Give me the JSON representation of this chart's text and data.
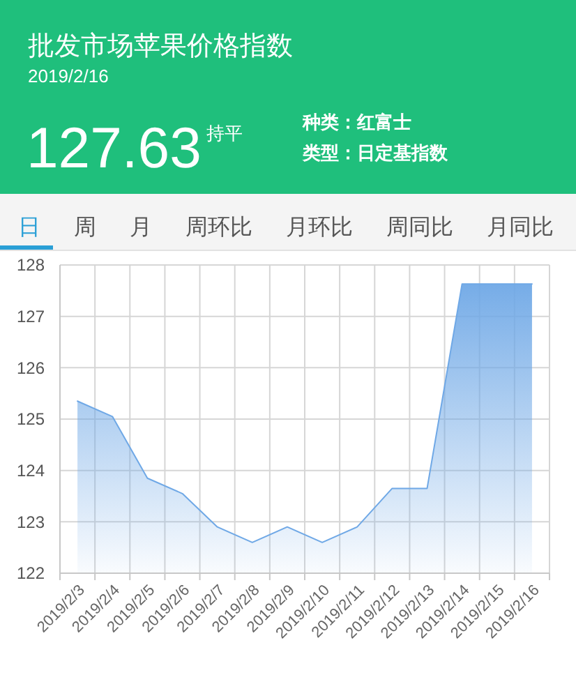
{
  "chart_data": {
    "type": "area",
    "title": "批发市场苹果价格指数",
    "subtitle": "2019/2/16",
    "annotations": [
      "127.63",
      "持平",
      "种类：红富士",
      "类型：日定基指数",
      "日",
      "周",
      "月",
      "周环比",
      "月环比",
      "周同比",
      "月同比"
    ],
    "categories": [
      "2019/2/3",
      "2019/2/4",
      "2019/2/5",
      "2019/2/6",
      "2019/2/7",
      "2019/2/8",
      "2019/2/9",
      "2019/2/10",
      "2019/2/11",
      "2019/2/12",
      "2019/2/13",
      "2019/2/14",
      "2019/2/15",
      "2019/2/16"
    ],
    "series": [
      {
        "color": "#6fa8e6",
        "values": [
          125.35,
          125.05,
          123.85,
          123.55,
          122.9,
          122.6,
          122.9,
          122.6,
          122.9,
          123.65,
          123.65,
          127.63,
          127.63,
          127.63
        ]
      }
    ],
    "ylim": [
      122,
      128
    ],
    "yticks": [
      122,
      123,
      124,
      125,
      126,
      127,
      128
    ],
    "grid": true
  }
}
